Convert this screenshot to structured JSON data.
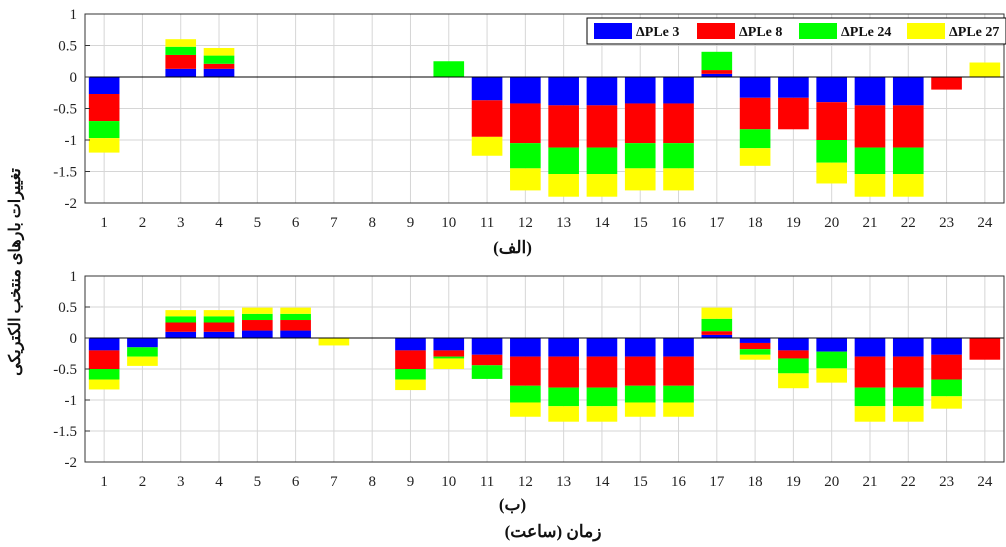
{
  "figure": {
    "ylabel": "تغییرات بارهای منتخب الکتریکی",
    "xlabel": "زمان (ساعت)",
    "legend": [
      "ΔPLe 3",
      "ΔPLe 8",
      "ΔPLe 24",
      "ΔPLe 27"
    ]
  },
  "chart_data": [
    {
      "type": "bar",
      "stacked": true,
      "title": "(الف)",
      "categories": [
        "1",
        "2",
        "3",
        "4",
        "5",
        "6",
        "7",
        "8",
        "9",
        "10",
        "11",
        "12",
        "13",
        "14",
        "15",
        "16",
        "17",
        "18",
        "19",
        "20",
        "21",
        "22",
        "23",
        "24"
      ],
      "ylim": [
        -2,
        1
      ],
      "yticks": [
        1,
        0.5,
        0,
        -0.5,
        -1,
        -1.5,
        -2
      ],
      "yticklabels": [
        "1",
        "0.5",
        "0",
        "-0.5",
        "-1",
        "-1.5",
        "-2"
      ],
      "grid": true,
      "legend_position": "top-right",
      "colors": [
        "#0000ff",
        "#ff0000",
        "#00ff00",
        "#ffff00"
      ],
      "series": [
        {
          "name": "ΔPLe 3",
          "values": [
            -0.27,
            0,
            0.13,
            0.13,
            0,
            0,
            0,
            0,
            0,
            0,
            -0.37,
            -0.42,
            -0.45,
            -0.45,
            -0.42,
            -0.42,
            0.05,
            -0.33,
            -0.33,
            -0.4,
            -0.45,
            -0.45,
            0,
            0
          ]
        },
        {
          "name": "ΔPLe 8",
          "values": [
            -0.43,
            0,
            0.22,
            0.08,
            0,
            0,
            0,
            0,
            0,
            0,
            -0.58,
            -0.63,
            -0.67,
            -0.67,
            -0.63,
            -0.63,
            0.06,
            -0.5,
            -0.5,
            -0.6,
            -0.67,
            -0.67,
            -0.2,
            0
          ]
        },
        {
          "name": "ΔPLe 24",
          "values": [
            -0.27,
            0,
            0.13,
            0.13,
            0,
            0,
            0,
            0,
            0,
            0.25,
            0,
            -0.4,
            -0.42,
            -0.42,
            -0.4,
            -0.4,
            0.29,
            -0.3,
            0,
            -0.36,
            -0.42,
            -0.42,
            0,
            0
          ]
        },
        {
          "name": "ΔPLe 27",
          "values": [
            -0.23,
            0,
            0.12,
            0.12,
            0,
            0,
            0,
            0,
            0,
            0,
            -0.3,
            -0.35,
            -0.36,
            -0.36,
            -0.35,
            -0.35,
            0,
            -0.28,
            0,
            -0.33,
            -0.36,
            -0.36,
            0,
            0.23
          ]
        }
      ]
    },
    {
      "type": "bar",
      "stacked": true,
      "title": "(ب)",
      "categories": [
        "1",
        "2",
        "3",
        "4",
        "5",
        "6",
        "7",
        "8",
        "9",
        "10",
        "11",
        "12",
        "13",
        "14",
        "15",
        "16",
        "17",
        "18",
        "19",
        "20",
        "21",
        "22",
        "23",
        "24"
      ],
      "ylim": [
        -2,
        1
      ],
      "yticks": [
        1,
        0.5,
        0,
        -0.5,
        -1,
        -1.5,
        -2
      ],
      "yticklabels": [
        "1",
        "0.5",
        "0",
        "-0.5",
        "-1",
        "-1.5",
        "-2"
      ],
      "grid": true,
      "colors": [
        "#0000ff",
        "#ff0000",
        "#00ff00",
        "#ffff00"
      ],
      "series": [
        {
          "name": "ΔPLe 3",
          "values": [
            -0.2,
            -0.15,
            0.1,
            0.1,
            0.12,
            0.12,
            0,
            0,
            -0.2,
            -0.2,
            -0.27,
            -0.3,
            -0.3,
            -0.3,
            -0.3,
            -0.3,
            0.05,
            -0.08,
            -0.2,
            -0.22,
            -0.3,
            -0.3,
            -0.27,
            0
          ]
        },
        {
          "name": "ΔPLe 8",
          "values": [
            -0.3,
            0,
            0.15,
            0.15,
            0.17,
            0.17,
            0,
            0,
            -0.3,
            -0.1,
            -0.17,
            -0.47,
            -0.5,
            -0.5,
            -0.47,
            -0.47,
            0.06,
            -0.1,
            -0.13,
            0,
            -0.5,
            -0.5,
            -0.4,
            -0.35
          ]
        },
        {
          "name": "ΔPLe 24",
          "values": [
            -0.17,
            -0.15,
            0.1,
            0.1,
            0.1,
            0.1,
            0,
            0,
            -0.17,
            -0.03,
            -0.22,
            -0.27,
            -0.3,
            -0.3,
            -0.27,
            -0.27,
            0.2,
            -0.09,
            -0.24,
            -0.27,
            -0.3,
            -0.3,
            -0.27,
            0
          ]
        },
        {
          "name": "ΔPLe 27",
          "values": [
            -0.16,
            -0.15,
            0.1,
            0.1,
            0.1,
            0.1,
            -0.12,
            0,
            -0.17,
            -0.17,
            0,
            -0.23,
            -0.25,
            -0.25,
            -0.23,
            -0.23,
            0.18,
            -0.08,
            -0.24,
            -0.23,
            -0.25,
            -0.25,
            -0.2,
            0
          ]
        }
      ]
    }
  ]
}
